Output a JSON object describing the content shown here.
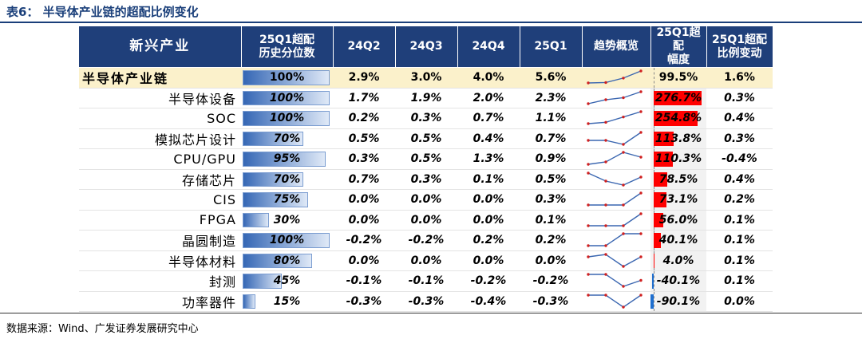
{
  "title": "表6：  半导体产业链的超配比例变化",
  "source": "数据来源：Wind、广发证券发展研究中心",
  "columns": {
    "industry": "新兴产业",
    "hist_pct": "25Q1超配\n历史分位数",
    "q1": "24Q2",
    "q2": "24Q3",
    "q3": "24Q4",
    "q4": "25Q1",
    "trend": "趋势概览",
    "amp": "25Q1超配\n幅度",
    "chg": "25Q1超配\n比例变动"
  },
  "colors": {
    "header_bg": "#1f3f7a",
    "main_row_bg": "#fbf1cb",
    "pct_bar": "#3567b5",
    "amp_pos": "#ff0000",
    "amp_neg": "#1f6fcf"
  },
  "rows": [
    {
      "name": "半导体产业链",
      "pct": "100%",
      "pct_value": 100,
      "q": [
        "2.9%",
        "3.0%",
        "4.0%",
        "5.6%"
      ],
      "spark": [
        2.9,
        3.0,
        4.0,
        5.6
      ],
      "amp": "99.5%",
      "amp_value": 99.5,
      "chg": "1.6%"
    },
    {
      "name": "半导体设备",
      "pct": "100%",
      "pct_value": 100,
      "q": [
        "1.7%",
        "1.9%",
        "2.0%",
        "2.3%"
      ],
      "spark": [
        1.7,
        1.9,
        2.0,
        2.3
      ],
      "amp": "276.7%",
      "amp_value": 276.7,
      "chg": "0.3%"
    },
    {
      "name": "SOC",
      "pct": "100%",
      "pct_value": 100,
      "q": [
        "0.2%",
        "0.3%",
        "0.7%",
        "1.1%"
      ],
      "spark": [
        0.2,
        0.3,
        0.7,
        1.1
      ],
      "amp": "254.8%",
      "amp_value": 254.8,
      "chg": "0.4%"
    },
    {
      "name": "模拟芯片设计",
      "pct": "70%",
      "pct_value": 70,
      "q": [
        "0.5%",
        "0.5%",
        "0.4%",
        "0.7%"
      ],
      "spark": [
        0.5,
        0.5,
        0.4,
        0.7
      ],
      "amp": "113.8%",
      "amp_value": 113.8,
      "chg": "0.3%"
    },
    {
      "name": "CPU/GPU",
      "pct": "95%",
      "pct_value": 95,
      "q": [
        "0.3%",
        "0.5%",
        "1.3%",
        "0.9%"
      ],
      "spark": [
        0.3,
        0.5,
        1.3,
        0.9
      ],
      "amp": "110.3%",
      "amp_value": 110.3,
      "chg": "-0.4%"
    },
    {
      "name": "存储芯片",
      "pct": "70%",
      "pct_value": 70,
      "q": [
        "0.7%",
        "0.3%",
        "0.1%",
        "0.5%"
      ],
      "spark": [
        0.7,
        0.3,
        0.1,
        0.5
      ],
      "amp": "78.5%",
      "amp_value": 78.5,
      "chg": "0.4%"
    },
    {
      "name": "CIS",
      "pct": "75%",
      "pct_value": 75,
      "q": [
        "0.0%",
        "0.0%",
        "0.0%",
        "0.3%"
      ],
      "spark": [
        0.0,
        0.0,
        0.0,
        0.3
      ],
      "amp": "73.1%",
      "amp_value": 73.1,
      "chg": "0.2%"
    },
    {
      "name": "FPGA",
      "pct": "30%",
      "pct_value": 30,
      "q": [
        "0.0%",
        "0.0%",
        "0.0%",
        "0.1%"
      ],
      "spark": [
        0.0,
        0.0,
        0.0,
        0.1
      ],
      "amp": "56.0%",
      "amp_value": 56.0,
      "chg": "0.1%"
    },
    {
      "name": "晶圆制造",
      "pct": "100%",
      "pct_value": 100,
      "q": [
        "-0.2%",
        "-0.2%",
        "0.2%",
        "0.2%"
      ],
      "spark": [
        -0.2,
        -0.2,
        0.2,
        0.2
      ],
      "amp": "40.1%",
      "amp_value": 40.1,
      "chg": "0.1%"
    },
    {
      "name": "半导体材料",
      "pct": "80%",
      "pct_value": 80,
      "q": [
        "0.0%",
        "0.0%",
        "0.0%",
        "0.0%"
      ],
      "spark": [
        0.04,
        0.05,
        0.0,
        0.04
      ],
      "amp": "4.0%",
      "amp_value": 4.0,
      "chg": "0.1%"
    },
    {
      "name": "封测",
      "pct": "45%",
      "pct_value": 45,
      "q": [
        "-0.1%",
        "-0.1%",
        "-0.2%",
        "-0.2%"
      ],
      "spark": [
        -0.1,
        -0.1,
        -0.2,
        -0.15
      ],
      "amp": "-40.1%",
      "amp_value": -40.1,
      "chg": "0.1%"
    },
    {
      "name": "功率器件",
      "pct": "15%",
      "pct_value": 15,
      "q": [
        "-0.3%",
        "-0.3%",
        "-0.4%",
        "-0.3%"
      ],
      "spark": [
        -0.3,
        -0.3,
        -0.4,
        -0.3
      ],
      "amp": "-90.1%",
      "amp_value": -90.1,
      "chg": "0.0%"
    }
  ]
}
